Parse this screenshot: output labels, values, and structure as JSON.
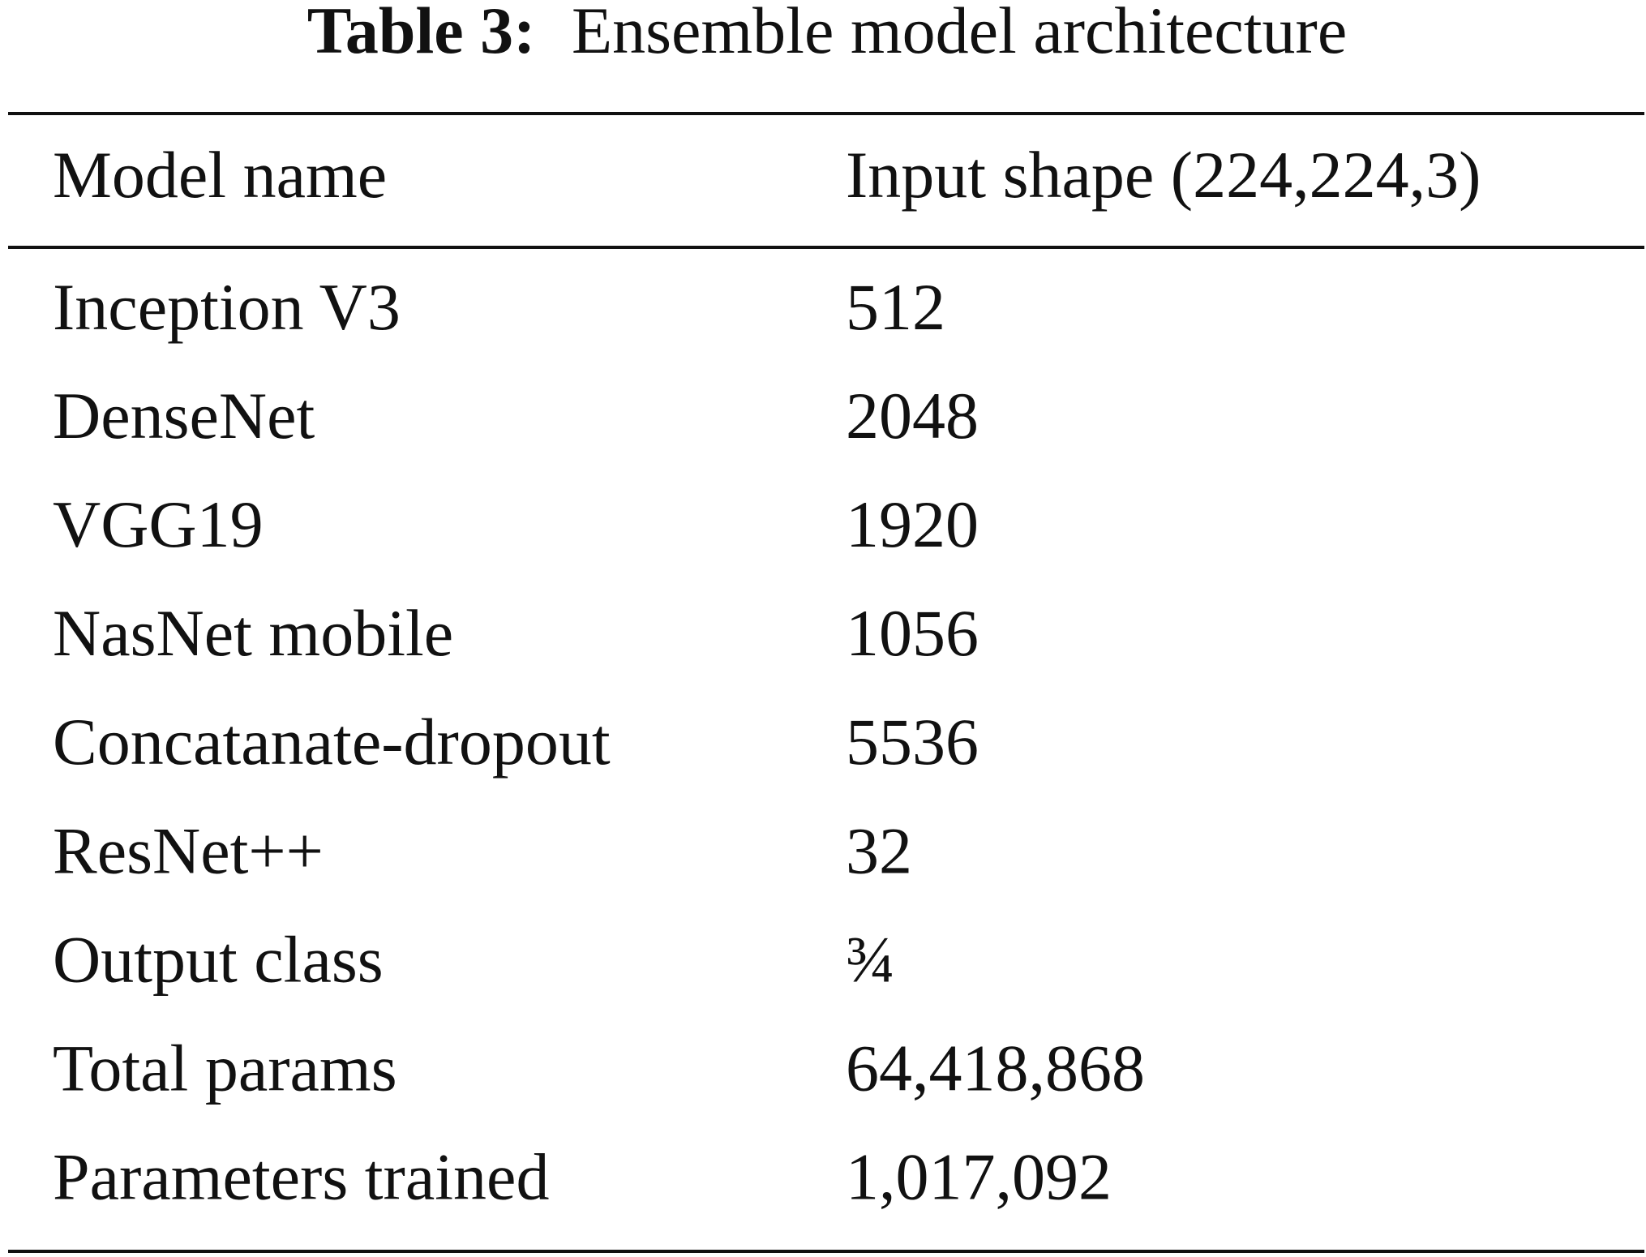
{
  "table": {
    "label": "Table 3:",
    "caption": "Ensemble model architecture",
    "header": [
      "Model name",
      "Input shape (224,224,3)"
    ],
    "rows": [
      [
        "Inception V3",
        "512"
      ],
      [
        "DenseNet",
        "2048"
      ],
      [
        "VGG19",
        "1920"
      ],
      [
        "NasNet mobile",
        "1056"
      ],
      [
        "Concatanate-dropout",
        "5536"
      ],
      [
        "ResNet++",
        "32"
      ],
      [
        "Output class",
        "¾"
      ],
      [
        "Total params",
        "64,418,868"
      ],
      [
        "Parameters trained",
        "1,017,092"
      ]
    ]
  }
}
